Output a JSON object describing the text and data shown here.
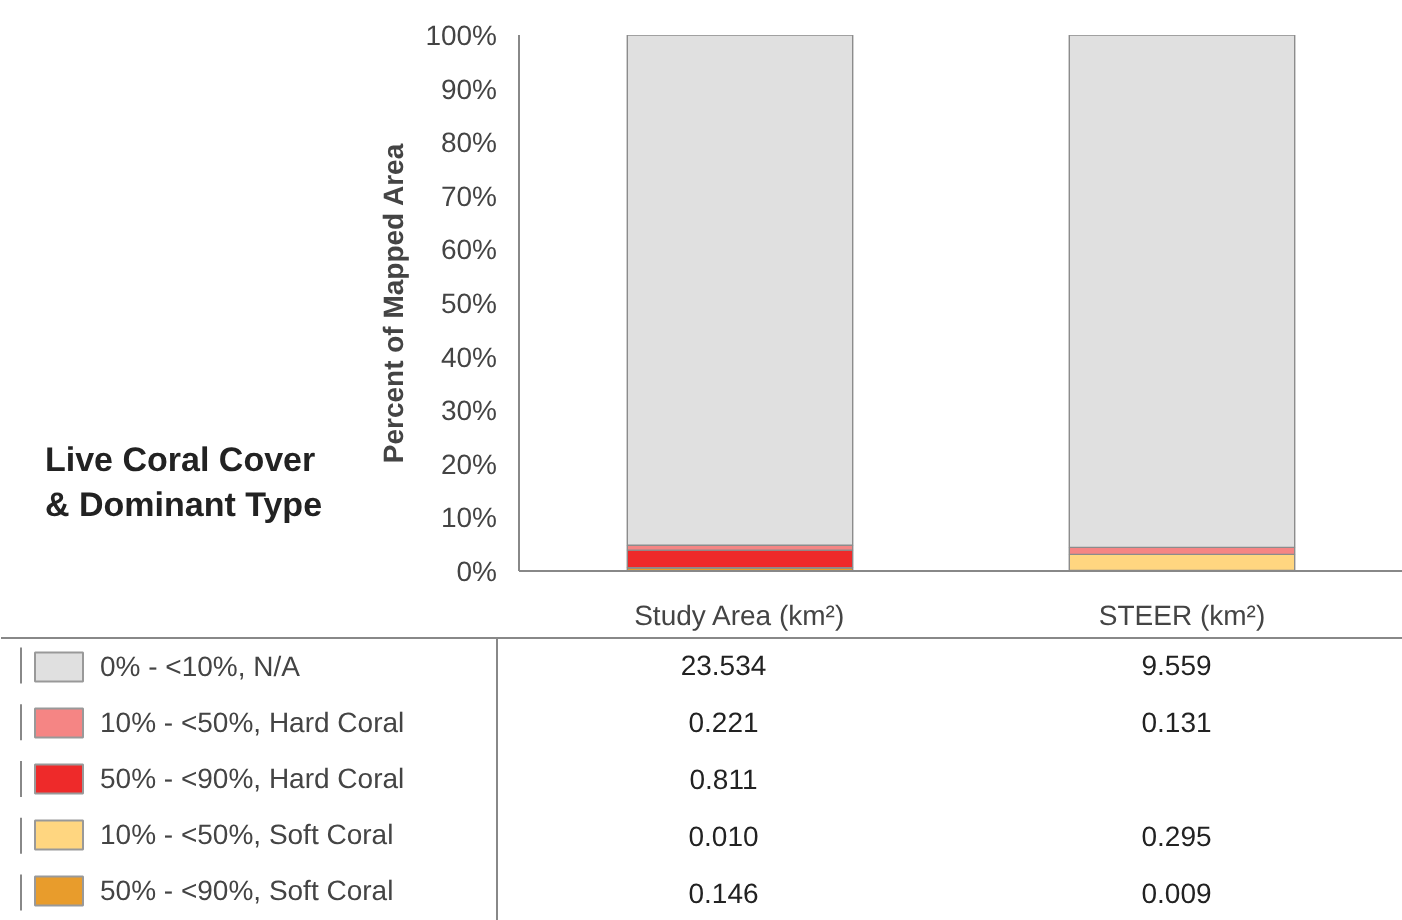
{
  "chart_data": {
    "type": "bar",
    "stacked": true,
    "title": "Live Coral Cover & Dominant Type",
    "ylabel": "Percent of Mapped Area",
    "categories": [
      "Study Area (km²)",
      "STEER (km²)"
    ],
    "ylim": [
      0,
      100
    ],
    "yticks": [
      {
        "value": 0,
        "label": "0%"
      },
      {
        "value": 10,
        "label": "10%"
      },
      {
        "value": 20,
        "label": "20%"
      },
      {
        "value": 30,
        "label": "30%"
      },
      {
        "value": 40,
        "label": "40%"
      },
      {
        "value": 50,
        "label": "50%"
      },
      {
        "value": 60,
        "label": "60%"
      },
      {
        "value": 70,
        "label": "70%"
      },
      {
        "value": 80,
        "label": "80%"
      },
      {
        "value": 90,
        "label": "90%"
      },
      {
        "value": 100,
        "label": "100%"
      }
    ],
    "grid": false,
    "legend": "bottom left",
    "series": [
      {
        "name": "50% - <90%, Soft Coral",
        "color": "#e89c2c",
        "values": [
          0.6,
          0.1
        ]
      },
      {
        "name": "10% - <50%, Soft Coral",
        "color": "#ffd680",
        "values": [
          0.0,
          3.0
        ]
      },
      {
        "name": "50% - <90%, Hard Coral",
        "color": "#ee2a2a",
        "values": [
          3.3,
          null
        ]
      },
      {
        "name": "10% - <50%, Hard Coral",
        "color": "#f58584",
        "values": [
          0.9,
          1.3
        ]
      },
      {
        "name": "0% - <10%, N/A",
        "color": "#e0e0e0",
        "values": [
          95.2,
          95.6
        ]
      }
    ],
    "annotations": [
      "23.534",
      "9.559",
      "0.221",
      "0.131",
      "0.811",
      null,
      "0.010",
      "0.295",
      "0.146",
      "0.009"
    ]
  }
}
